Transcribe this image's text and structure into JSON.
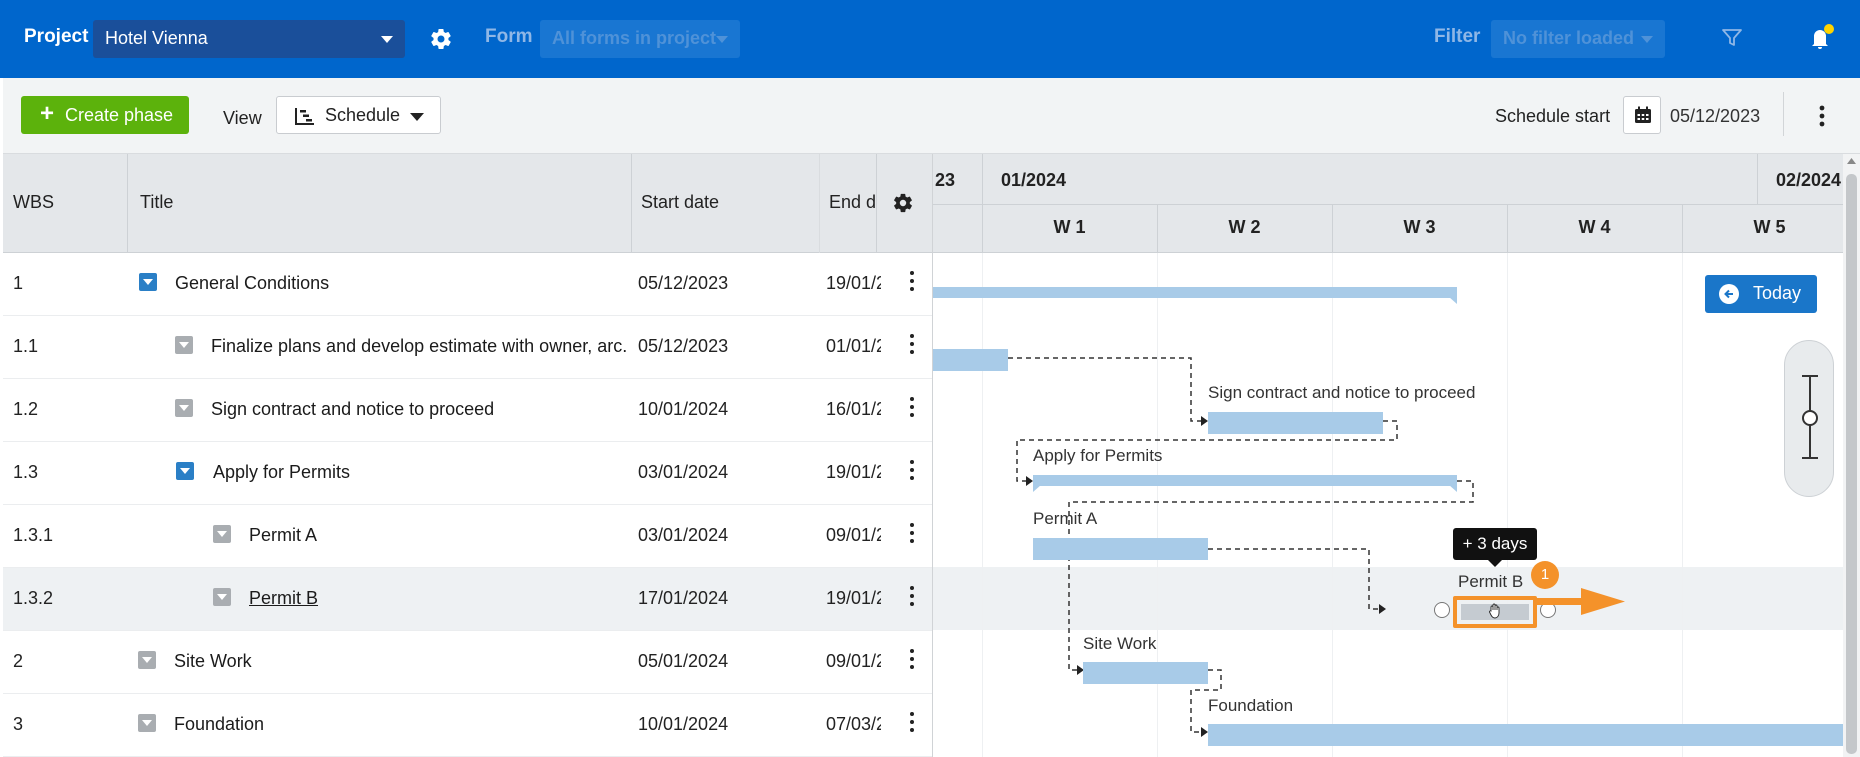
{
  "topbar": {
    "project_label": "Project",
    "project_value": "Hotel Vienna",
    "form_label": "Form",
    "form_value": "All forms in project",
    "filter_label": "Filter",
    "filter_value": "No filter loaded",
    "icons": [
      "gear-icon",
      "filter-icon",
      "bell-icon"
    ],
    "notification_dot_color": "#ffd400"
  },
  "toolbar": {
    "create_label": "Create phase",
    "view_label": "View",
    "view_value": "Schedule",
    "schedule_start_label": "Schedule start",
    "schedule_start_value": "05/12/2023"
  },
  "table": {
    "columns": {
      "wbs": "WBS",
      "title": "Title",
      "start": "Start date",
      "end": "End da"
    },
    "rows": [
      {
        "wbs": "1",
        "title": "General Conditions",
        "start": "05/12/2023",
        "end": "19/01/2"
      },
      {
        "wbs": "1.1",
        "title": "Finalize plans and develop estimate with owner, arc...",
        "start": "05/12/2023",
        "end": "01/01/2"
      },
      {
        "wbs": "1.2",
        "title": "Sign contract and notice to proceed",
        "start": "10/01/2024",
        "end": "16/01/2"
      },
      {
        "wbs": "1.3",
        "title": "Apply for Permits",
        "start": "03/01/2024",
        "end": "19/01/2"
      },
      {
        "wbs": "1.3.1",
        "title": "Permit A",
        "start": "03/01/2024",
        "end": "09/01/2"
      },
      {
        "wbs": "1.3.2",
        "title": "Permit B",
        "start": "17/01/2024",
        "end": "19/01/2"
      },
      {
        "wbs": "2",
        "title": "Site Work",
        "start": "05/01/2024",
        "end": "09/01/2"
      },
      {
        "wbs": "3",
        "title": "Foundation",
        "start": "10/01/2024",
        "end": "07/03/2"
      }
    ]
  },
  "gantt": {
    "months": [
      "23",
      "01/2024",
      "02/2024"
    ],
    "weeks": [
      "W 1",
      "W 2",
      "W 3",
      "W 4",
      "W 5"
    ],
    "today_label": "Today",
    "bar_labels": {
      "sign_contract": "Sign contract and notice to proceed",
      "apply_permits": "Apply for Permits",
      "permit_a": "Permit A",
      "permit_b": "Permit B",
      "site_work": "Site Work",
      "foundation": "Foundation"
    },
    "tooltip": "+ 3 days",
    "step_badge": "1",
    "bar_color": "#a8cbe8",
    "accent_color": "#f4922a"
  }
}
